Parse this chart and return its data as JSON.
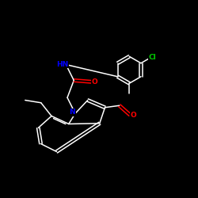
{
  "background_color": "#000000",
  "bond_color": "#ffffff",
  "N_color": "#0000ff",
  "O_color": "#ff0000",
  "Cl_color": "#00cc00",
  "fig_width": 2.5,
  "fig_height": 2.5,
  "dpi": 100,
  "xlim": [
    0,
    10
  ],
  "ylim": [
    0,
    10
  ]
}
